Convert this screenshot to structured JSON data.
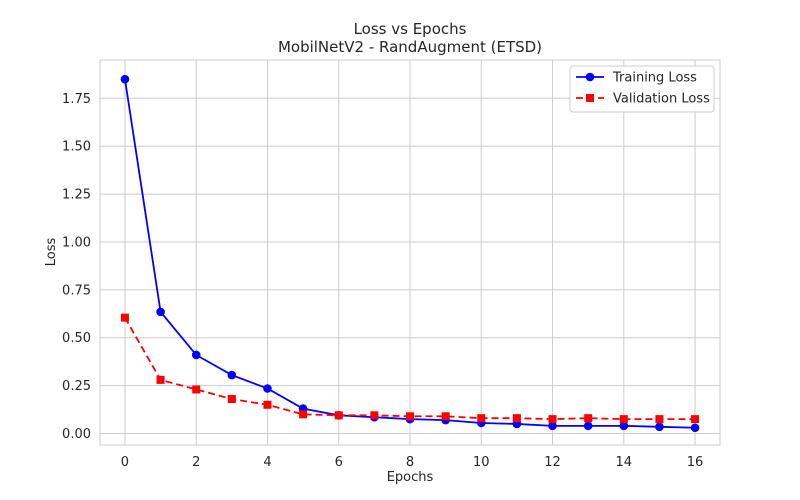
{
  "chart_data": {
    "type": "line",
    "title": "Loss vs Epochs",
    "subtitle": "MobilNetV2 - RandAugment (ETSD)",
    "xlabel": "Epochs",
    "ylabel": "Loss",
    "xlim": [
      -0.7,
      16.7
    ],
    "ylim": [
      -0.06,
      1.95
    ],
    "xticks": [
      0,
      2,
      4,
      6,
      8,
      10,
      12,
      14,
      16
    ],
    "yticks": [
      0.0,
      0.25,
      0.5,
      0.75,
      1.0,
      1.25,
      1.5,
      1.75
    ],
    "ytick_labels": [
      "0.00",
      "0.25",
      "0.50",
      "0.75",
      "1.00",
      "1.25",
      "1.50",
      "1.75"
    ],
    "grid": true,
    "legend_position": "top-right",
    "x": [
      0,
      1,
      2,
      3,
      4,
      5,
      6,
      7,
      8,
      9,
      10,
      11,
      12,
      13,
      14,
      15,
      16
    ],
    "series": [
      {
        "name": "Training Loss",
        "color": "#0000ff",
        "line_style": "solid",
        "marker": "circle",
        "values": [
          1.85,
          0.635,
          0.41,
          0.305,
          0.235,
          0.13,
          0.095,
          0.085,
          0.075,
          0.07,
          0.055,
          0.05,
          0.04,
          0.04,
          0.04,
          0.035,
          0.03
        ]
      },
      {
        "name": "Validation Loss",
        "color": "#ff0000",
        "line_style": "dashed",
        "marker": "square",
        "values": [
          0.605,
          0.28,
          0.23,
          0.18,
          0.15,
          0.1,
          0.095,
          0.095,
          0.09,
          0.09,
          0.08,
          0.08,
          0.075,
          0.08,
          0.075,
          0.075,
          0.075
        ]
      }
    ]
  }
}
